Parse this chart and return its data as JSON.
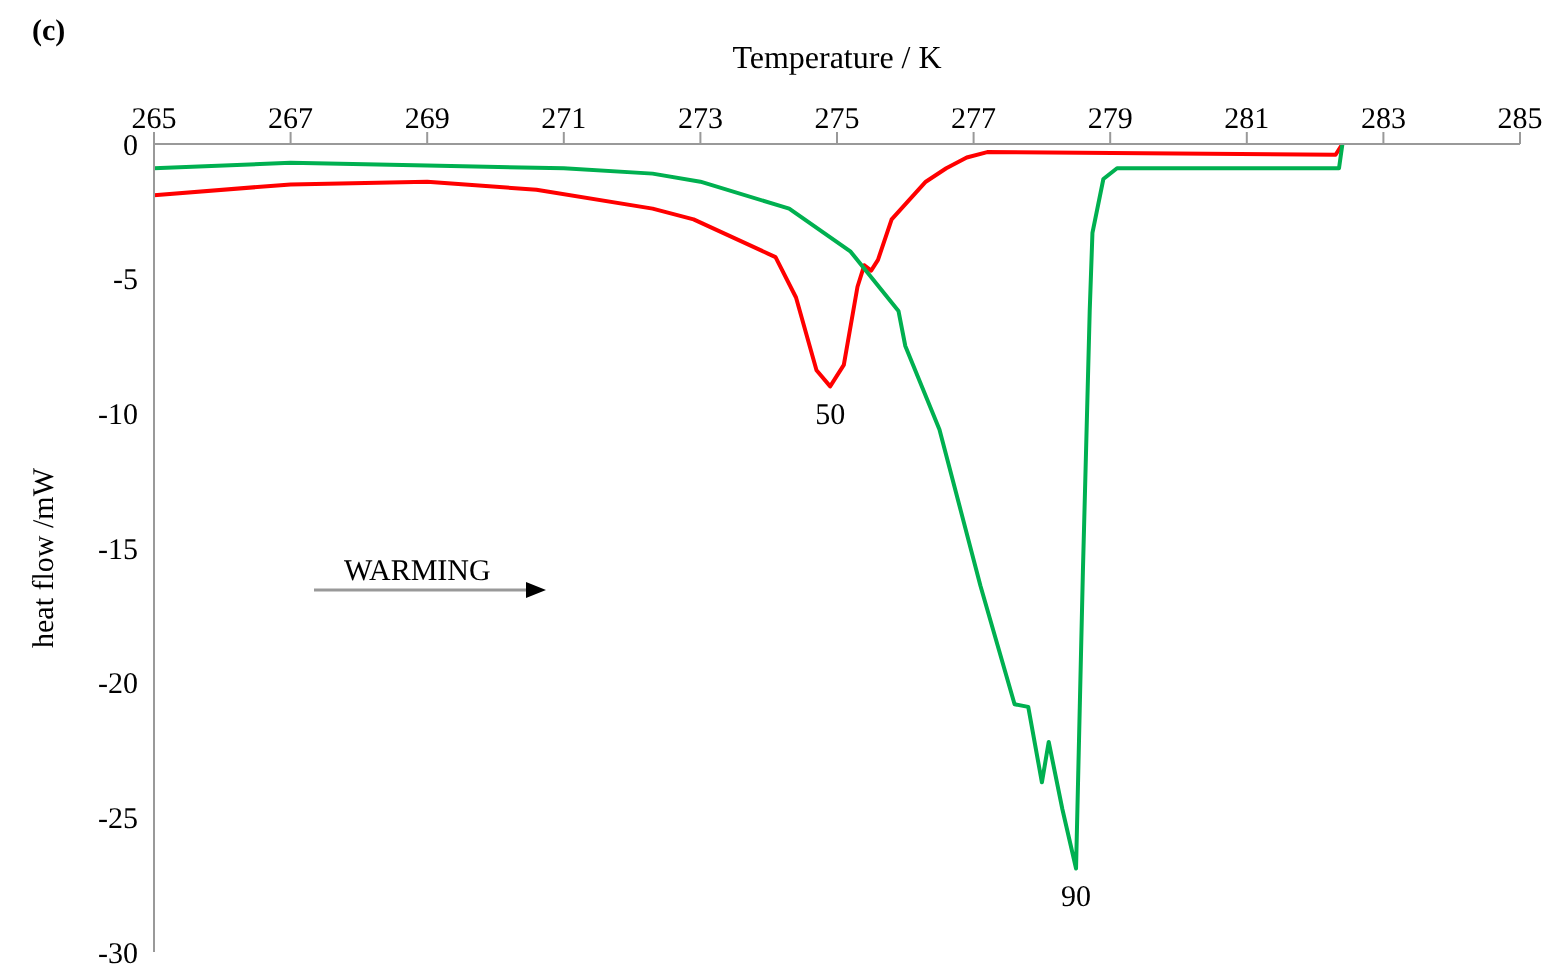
{
  "chart_data": {
    "type": "line",
    "xlabel": "Temperature / K",
    "ylabel": "heat flow /mW",
    "xlim": [
      265,
      285
    ],
    "xticks": [
      265,
      267,
      269,
      271,
      273,
      275,
      277,
      279,
      281,
      283,
      285
    ],
    "ylim": [
      -30,
      0
    ],
    "yticks": [
      -30,
      -25,
      -20,
      -15,
      -10,
      -5,
      0
    ],
    "grid": false,
    "marker": "none",
    "line_style": "solid",
    "series": [
      {
        "color": "#ff0000",
        "x": [
          265,
          267,
          269,
          270.6,
          272.3,
          272.9,
          274.1,
          274.4,
          274.7,
          274.9,
          275.1,
          275.3,
          275.4,
          275.5,
          275.6,
          275.8,
          276.3,
          276.6,
          276.9,
          277.2,
          282.3,
          282.4
        ],
        "values": [
          -1.9,
          -1.5,
          -1.4,
          -1.7,
          -2.4,
          -2.8,
          -4.2,
          -5.7,
          -8.4,
          -9,
          -8.2,
          -5.3,
          -4.5,
          -4.7,
          -4.3,
          -2.8,
          -1.4,
          -0.9,
          -0.5,
          -0.3,
          -0.4,
          0
        ]
      },
      {
        "color": "#00b050",
        "x": [
          265,
          267,
          269,
          271,
          272.3,
          273,
          274.3,
          275.2,
          275.9,
          276,
          276.5,
          276.8,
          277.1,
          277.6,
          277.8,
          278,
          278.1,
          278.3,
          278.5,
          278.6,
          278.7,
          278.74,
          278.9,
          279.1,
          282.35,
          282.4
        ],
        "values": [
          -0.9,
          -0.7,
          -0.8,
          -0.9,
          -1.1,
          -1.4,
          -2.4,
          -4,
          -6.2,
          -7.5,
          -10.6,
          -13.5,
          -16.4,
          -20.8,
          -20.9,
          -23.7,
          -22.2,
          -24.7,
          -26.9,
          -15.9,
          -6.2,
          -3.3,
          -1.3,
          -0.9,
          -0.9,
          0
        ]
      }
    ],
    "annotations": [
      "(c)",
      "WARMING",
      {
        "text": "50",
        "x": 274.9,
        "y": -9
      },
      {
        "text": "90",
        "x": 278.5,
        "y": -26.9
      }
    ]
  }
}
